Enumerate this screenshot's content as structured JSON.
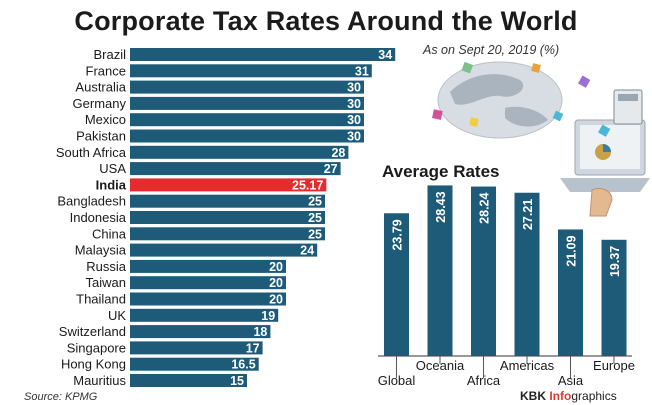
{
  "title": "Corporate Tax Rates Around the World",
  "subtitle": "As on Sept 20, 2019 (%)",
  "source": "Source: KPMG",
  "brand": {
    "part1": "KBK ",
    "part2": "Info",
    "part3": "graphics"
  },
  "colors": {
    "bar": "#1d5b78",
    "highlight": "#e62b2e"
  },
  "chart_data": [
    {
      "type": "bar",
      "orientation": "horizontal",
      "title": "Corporate Tax Rates Around the World",
      "categories": [
        "Brazil",
        "France",
        "Australia",
        "Germany",
        "Mexico",
        "Pakistan",
        "South Africa",
        "USA",
        "India",
        "Bangladesh",
        "Indonesia",
        "China",
        "Malaysia",
        "Russia",
        "Taiwan",
        "Thailand",
        "UK",
        "Switzerland",
        "Singapore",
        "Hong Kong",
        "Mauritius"
      ],
      "values": [
        34,
        31,
        30,
        30,
        30,
        30,
        28,
        27,
        25.17,
        25,
        25,
        25,
        24,
        20,
        20,
        20,
        19,
        18,
        17,
        16.5,
        15
      ],
      "value_labels": [
        "34",
        "31",
        "30",
        "30",
        "30",
        "30",
        "28",
        "27",
        "25.17",
        "25",
        "25",
        "25",
        "24",
        "20",
        "20",
        "20",
        "19",
        "18",
        "17",
        "16.5",
        "15"
      ],
      "highlight": "India",
      "xlim": [
        0,
        35
      ]
    },
    {
      "type": "bar",
      "title": "Average Rates",
      "categories": [
        "Global",
        "Oceania",
        "Africa",
        "Americas",
        "Asia",
        "Europe"
      ],
      "values": [
        23.79,
        28.43,
        28.24,
        27.21,
        21.09,
        19.37
      ],
      "value_labels": [
        "23.79",
        "28.43",
        "28.24",
        "27.21",
        "21.09",
        "19.37"
      ],
      "ylim": [
        0,
        30
      ]
    }
  ]
}
